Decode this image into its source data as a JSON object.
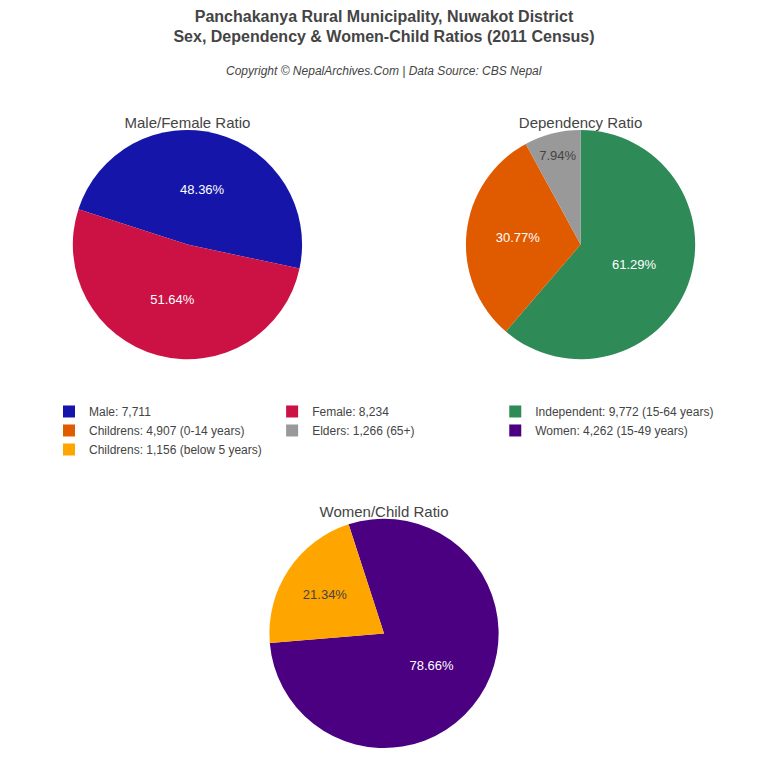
{
  "title": "Panchakanya Rural Municipality, Nuwakot District",
  "subtitle": "Sex, Dependency & Women-Child Ratios (2011 Census)",
  "annotations": [
    "Copyright © NepalArchives.Com | Data Source: CBS Nepal"
  ],
  "chart_data": [
    {
      "type": "pie",
      "title": "Male/Female Ratio",
      "categories": [
        "Male: 7,711",
        "Female: 8,234"
      ],
      "values": [
        48.36,
        51.64
      ],
      "value_labels": [
        "48.36%",
        "51.64%"
      ],
      "colors": [
        "#1515AA",
        "#CC1144"
      ],
      "data_labels": true,
      "legend": "center"
    },
    {
      "type": "pie",
      "title": "Dependency Ratio",
      "categories": [
        "Independent: 9,772 (15-64 years)",
        "Childrens: 4,907 (0-14 years)",
        "Elders: 1,266 (65+)"
      ],
      "values": [
        61.29,
        30.77,
        7.94
      ],
      "value_labels": [
        "61.29%",
        "30.77%",
        "7.94%"
      ],
      "colors": [
        "#2E8B57",
        "#E05A00",
        "#999999"
      ],
      "data_labels": true,
      "legend": "center"
    },
    {
      "type": "pie",
      "title": "Women/Child Ratio",
      "categories": [
        "Women: 4,262 (15-49 years)",
        "Childrens: 1,156 (below 5 years)"
      ],
      "values": [
        78.66,
        21.34
      ],
      "value_labels": [
        "78.66%",
        "21.34%"
      ],
      "colors": [
        "#4B0082",
        "#FFA500"
      ],
      "data_labels": true,
      "legend": "center"
    }
  ]
}
